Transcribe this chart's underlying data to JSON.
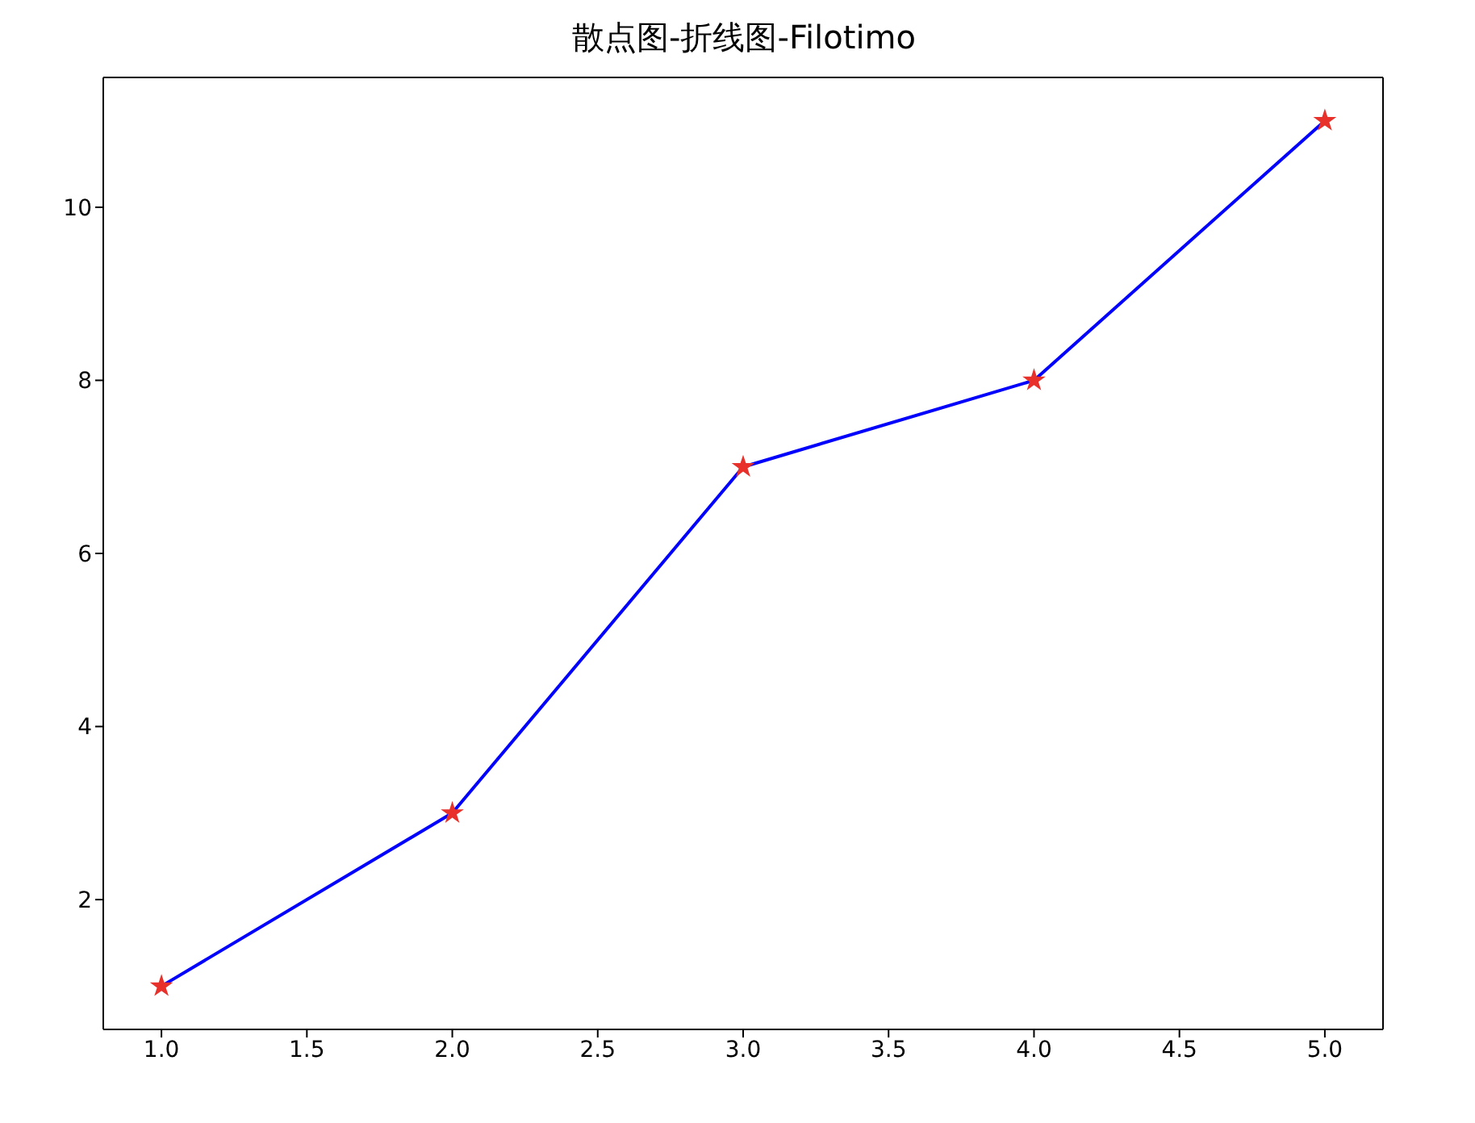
{
  "chart_data": {
    "type": "line",
    "title": "散点图-折线图-Filotimo",
    "x": [
      1,
      2,
      3,
      4,
      5
    ],
    "series": [
      {
        "type": "line",
        "color": "#0000ff",
        "marker": "none",
        "values": [
          1,
          3,
          7,
          8,
          11
        ]
      },
      {
        "type": "scatter",
        "color": "#e8312a",
        "marker": "star",
        "values": [
          1,
          3,
          7,
          8,
          11
        ]
      }
    ],
    "xlim": [
      0.8,
      5.2
    ],
    "xticks": [
      {
        "value": 1,
        "label": "1.0"
      },
      {
        "value": 1.5,
        "label": "1.5"
      },
      {
        "value": 2,
        "label": "2.0"
      },
      {
        "value": 2.5,
        "label": "2.5"
      },
      {
        "value": 3,
        "label": "3.0"
      },
      {
        "value": 3.5,
        "label": "3.5"
      },
      {
        "value": 4,
        "label": "4.0"
      },
      {
        "value": 4.5,
        "label": "4.5"
      },
      {
        "value": 5,
        "label": "5.0"
      }
    ],
    "ylim": [
      0.5,
      11.5
    ],
    "yticks": [
      2,
      4,
      6,
      8,
      10
    ],
    "grid": false,
    "legend": false
  }
}
